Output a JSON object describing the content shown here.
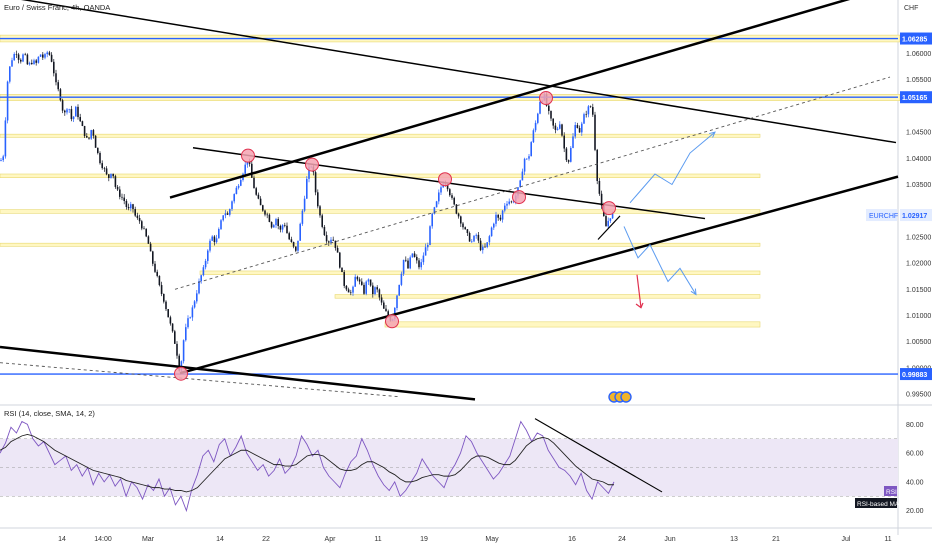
{
  "header": {
    "title": "Euro / Swiss Franc, 4h, OANDA",
    "currency": "CHF"
  },
  "colors": {
    "up": "#2962ff",
    "down": "#131722",
    "level": "#2962ff",
    "zone": "#fff7c2",
    "zone_border": "#e8d870",
    "marker_fill": "#f4a3b2",
    "marker_stroke": "#e0304e",
    "projection": "#5b9bf0",
    "arrow_red": "#e0304e",
    "rsi_line": "#7e57c2",
    "rsi_band": "#ede7f6"
  },
  "price_scale": {
    "ticks": [
      "1.06000",
      "1.05500",
      "1.04500",
      "1.04000",
      "1.03500",
      "1.02500",
      "1.02000",
      "1.01500",
      "1.01000",
      "1.00500",
      "1.00000",
      "0.99500"
    ],
    "badges": [
      {
        "name": "level-badge-high",
        "label": "1.06285",
        "value": 1.06285,
        "style": "level"
      },
      {
        "name": "level-badge-mid",
        "label": "1.05165",
        "value": 1.05165,
        "style": "level"
      },
      {
        "name": "price-badge-current",
        "label": "1.02917",
        "value": 1.02917,
        "style": "current"
      },
      {
        "name": "level-badge-low",
        "label": "0.99883",
        "value": 0.99883,
        "style": "level"
      }
    ],
    "symbol_tag": "EURCHF"
  },
  "time_axis": {
    "labels": [
      "14",
      "14:00",
      "Mar",
      "14",
      "22",
      "Apr",
      "11",
      "19",
      "May",
      "16",
      "24",
      "Jun",
      "13",
      "21",
      "Jul",
      "11"
    ]
  },
  "rsi": {
    "title": "RSI (14, close, SMA, 14, 2)",
    "ticks": [
      "80.00",
      "60.00",
      "40.00",
      "20.00"
    ],
    "tag_rsi": "RSI",
    "tag_ma": "RSI-based MA"
  },
  "chart_data": {
    "type": "candlestick",
    "title": "Euro / Swiss Franc, 4h, OANDA",
    "ylabel": "CHF",
    "ylim": [
      0.9935,
      1.0702
    ],
    "x_tick_labels": [
      "14",
      "14:00",
      "Mar",
      "14",
      "22",
      "Apr",
      "11",
      "19",
      "May",
      "16",
      "24",
      "Jun",
      "13",
      "21",
      "Jul",
      "11"
    ],
    "price_path": [
      [
        0,
        1.0395
      ],
      [
        3,
        1.04
      ],
      [
        8,
        1.056
      ],
      [
        12,
        1.059
      ],
      [
        16,
        1.0605
      ],
      [
        20,
        1.0585
      ],
      [
        24,
        1.06
      ],
      [
        28,
        1.0575
      ],
      [
        32,
        1.0585
      ],
      [
        36,
        1.058
      ],
      [
        40,
        1.06
      ],
      [
        44,
        1.059
      ],
      [
        48,
        1.0605
      ],
      [
        52,
        1.0585
      ],
      [
        56,
        1.054
      ],
      [
        60,
        1.052
      ],
      [
        64,
        1.048
      ],
      [
        68,
        1.0505
      ],
      [
        72,
        1.047
      ],
      [
        76,
        1.0495
      ],
      [
        80,
        1.047
      ],
      [
        84,
        1.045
      ],
      [
        88,
        1.043
      ],
      [
        92,
        1.046
      ],
      [
        96,
        1.042
      ],
      [
        100,
        1.0395
      ],
      [
        104,
        1.038
      ],
      [
        108,
        1.036
      ],
      [
        112,
        1.038
      ],
      [
        116,
        1.034
      ],
      [
        120,
        1.033
      ],
      [
        124,
        1.032
      ],
      [
        128,
        1.03
      ],
      [
        132,
        1.031
      ],
      [
        136,
        1.0285
      ],
      [
        140,
        1.028
      ],
      [
        144,
        1.026
      ],
      [
        148,
        1.024
      ],
      [
        152,
        1.0205
      ],
      [
        156,
        1.018
      ],
      [
        160,
        1.015
      ],
      [
        164,
        1.013
      ],
      [
        168,
        1.01
      ],
      [
        172,
        1.007
      ],
      [
        176,
        1.004
      ],
      [
        180,
        0.999
      ],
      [
        184,
        1.006
      ],
      [
        188,
        1.009
      ],
      [
        192,
        1.011
      ],
      [
        196,
        1.014
      ],
      [
        200,
        1.017
      ],
      [
        204,
        1.019
      ],
      [
        208,
        1.023
      ],
      [
        212,
        1.025
      ],
      [
        216,
        1.024
      ],
      [
        220,
        1.027
      ],
      [
        224,
        1.03
      ],
      [
        228,
        1.029
      ],
      [
        232,
        1.032
      ],
      [
        236,
        1.034
      ],
      [
        240,
        1.036
      ],
      [
        244,
        1.038
      ],
      [
        248,
        1.04
      ],
      [
        252,
        1.036
      ],
      [
        256,
        1.033
      ],
      [
        260,
        1.031
      ],
      [
        264,
        1.03
      ],
      [
        268,
        1.029
      ],
      [
        272,
        1.027
      ],
      [
        276,
        1.0285
      ],
      [
        280,
        1.026
      ],
      [
        284,
        1.028
      ],
      [
        288,
        1.025
      ],
      [
        292,
        1.0235
      ],
      [
        296,
        1.022
      ],
      [
        300,
        1.027
      ],
      [
        304,
        1.032
      ],
      [
        308,
        1.0375
      ],
      [
        312,
        1.039
      ],
      [
        316,
        1.033
      ],
      [
        320,
        1.029
      ],
      [
        324,
        1.026
      ],
      [
        328,
        1.024
      ],
      [
        332,
        1.025
      ],
      [
        336,
        1.023
      ],
      [
        340,
        1.0195
      ],
      [
        344,
        1.016
      ],
      [
        348,
        1.015
      ],
      [
        352,
        1.014
      ],
      [
        356,
        1.018
      ],
      [
        360,
        1.016
      ],
      [
        364,
        1.0145
      ],
      [
        368,
        1.0175
      ],
      [
        372,
        1.014
      ],
      [
        376,
        1.0155
      ],
      [
        380,
        1.013
      ],
      [
        384,
        1.011
      ],
      [
        388,
        1.01
      ],
      [
        392,
        1.009
      ],
      [
        396,
        1.013
      ],
      [
        400,
        1.017
      ],
      [
        404,
        1.021
      ],
      [
        408,
        1.019
      ],
      [
        412,
        1.022
      ],
      [
        416,
        1.0205
      ],
      [
        420,
        1.019
      ],
      [
        424,
        1.022
      ],
      [
        428,
        1.024
      ],
      [
        432,
        1.029
      ],
      [
        436,
        1.031
      ],
      [
        440,
        1.034
      ],
      [
        444,
        1.036
      ],
      [
        448,
        1.0345
      ],
      [
        452,
        1.032
      ],
      [
        456,
        1.03
      ],
      [
        460,
        1.0285
      ],
      [
        464,
        1.0265
      ],
      [
        468,
        1.025
      ],
      [
        472,
        1.024
      ],
      [
        476,
        1.0255
      ],
      [
        480,
        1.023
      ],
      [
        484,
        1.0225
      ],
      [
        488,
        1.024
      ],
      [
        492,
        1.027
      ],
      [
        496,
        1.029
      ],
      [
        500,
        1.028
      ],
      [
        504,
        1.031
      ],
      [
        508,
        1.032
      ],
      [
        512,
        1.0315
      ],
      [
        516,
        1.033
      ],
      [
        520,
        1.035
      ],
      [
        524,
        1.04
      ],
      [
        528,
        1.0395
      ],
      [
        532,
        1.044
      ],
      [
        536,
        1.047
      ],
      [
        540,
        1.051
      ],
      [
        544,
        1.052
      ],
      [
        548,
        1.049
      ],
      [
        552,
        1.0465
      ],
      [
        556,
        1.045
      ],
      [
        560,
        1.047
      ],
      [
        564,
        1.042
      ],
      [
        568,
        1.039
      ],
      [
        572,
        1.043
      ],
      [
        576,
        1.047
      ],
      [
        580,
        1.045
      ],
      [
        584,
        1.048
      ],
      [
        588,
        1.0495
      ],
      [
        592,
        1.05
      ],
      [
        594,
        1.046
      ],
      [
        596,
        1.038
      ],
      [
        598,
        1.035
      ],
      [
        602,
        1.03
      ],
      [
        606,
        1.027
      ],
      [
        610,
        1.029
      ],
      [
        614,
        1.0292
      ]
    ],
    "levels": [
      1.06285,
      1.05165,
      0.99883
    ],
    "current_price": 1.02917,
    "zones": [
      {
        "x0": 0,
        "x1": 900,
        "y0": 1.0622,
        "y1": 1.0635
      },
      {
        "x0": 0,
        "x1": 900,
        "y0": 1.051,
        "y1": 1.0522
      },
      {
        "x0": 0,
        "x1": 760,
        "y0": 1.044,
        "y1": 1.0446
      },
      {
        "x0": 0,
        "x1": 760,
        "y0": 1.0363,
        "y1": 1.037
      },
      {
        "x0": 0,
        "x1": 760,
        "y0": 1.0295,
        "y1": 1.0302
      },
      {
        "x0": 0,
        "x1": 760,
        "y0": 1.0232,
        "y1": 1.0238
      },
      {
        "x0": 200,
        "x1": 760,
        "y0": 1.0178,
        "y1": 1.0185
      },
      {
        "x0": 335,
        "x1": 760,
        "y0": 1.0133,
        "y1": 1.014
      },
      {
        "x0": 385,
        "x1": 760,
        "y0": 1.0078,
        "y1": 1.0088
      }
    ],
    "trendlines": [
      {
        "p1": [
          0,
          1.071
        ],
        "p2": [
          896,
          1.043
        ],
        "w": 1.5,
        "dash": false
      },
      {
        "p1": [
          170,
          1.0325
        ],
        "p2": [
          860,
          1.071
        ],
        "w": 2.5,
        "dash": false
      },
      {
        "p1": [
          0,
          1.004
        ],
        "p2": [
          475,
          0.994
        ],
        "w": 2.5,
        "dash": false
      },
      {
        "p1": [
          180,
          0.999
        ],
        "p2": [
          898,
          1.0365
        ],
        "w": 2.5,
        "dash": false
      },
      {
        "p1": [
          193,
          1.042
        ],
        "p2": [
          705,
          1.0285
        ],
        "w": 1.5,
        "dash": false
      },
      {
        "p1": [
          175,
          1.015
        ],
        "p2": [
          890,
          1.0555
        ],
        "w": 0.9,
        "dash": true
      },
      {
        "p1": [
          0,
          1.001
        ],
        "p2": [
          400,
          0.9945
        ],
        "w": 0.9,
        "dash": true
      },
      {
        "p1": [
          598,
          1.0245
        ],
        "p2": [
          620,
          1.029
        ],
        "w": 1.2,
        "dash": false
      }
    ],
    "markers": [
      [
        248,
        1.0405
      ],
      [
        312,
        1.0388
      ],
      [
        445,
        1.036
      ],
      [
        519,
        1.0326
      ],
      [
        546,
        1.0515
      ],
      [
        609,
        1.0305
      ],
      [
        392,
        1.0089
      ],
      [
        181,
        0.9989
      ]
    ],
    "projection_up": [
      [
        630,
        1.0315
      ],
      [
        655,
        1.037
      ],
      [
        672,
        1.035
      ],
      [
        690,
        1.041
      ],
      [
        715,
        1.045
      ]
    ],
    "projection_down": [
      [
        624,
        1.027
      ],
      [
        638,
        1.021
      ],
      [
        650,
        1.0235
      ],
      [
        668,
        1.0165
      ],
      [
        680,
        1.019
      ],
      [
        696,
        1.014
      ]
    ],
    "rsi_ylim": [
      10,
      90
    ],
    "rsi_bands": [
      30,
      70
    ],
    "rsi_levels": [
      50
    ],
    "rsi_values": [
      60,
      67,
      78,
      74,
      82,
      80,
      70,
      65,
      68,
      60,
      52,
      55,
      58,
      48,
      52,
      44,
      50,
      38,
      46,
      40,
      45,
      37,
      42,
      30,
      40,
      36,
      28,
      38,
      34,
      42,
      30,
      36,
      24,
      30,
      20,
      35,
      45,
      58,
      62,
      54,
      66,
      70,
      58,
      64,
      72,
      60,
      54,
      48,
      52,
      44,
      48,
      56,
      46,
      50,
      58,
      72,
      66,
      58,
      62,
      50,
      44,
      40,
      36,
      46,
      54,
      58,
      70,
      62,
      52,
      44,
      38,
      34,
      40,
      30,
      34,
      40,
      46,
      56,
      50,
      44,
      40,
      36,
      46,
      52,
      60,
      72,
      68,
      60,
      54,
      48,
      42,
      46,
      52,
      58,
      70,
      82,
      76,
      68,
      74,
      72,
      62,
      56,
      50,
      48,
      44,
      38,
      46,
      34,
      28,
      40,
      36,
      32,
      40
    ],
    "rsi_ma_values": [
      62,
      64,
      68,
      70,
      72,
      73,
      72,
      70,
      68,
      65,
      62,
      60,
      58,
      56,
      54,
      52,
      50,
      48,
      47,
      46,
      45,
      44,
      43,
      41,
      40,
      39,
      38,
      37,
      36,
      36,
      35,
      35,
      34,
      34,
      33,
      34,
      36,
      40,
      44,
      48,
      52,
      56,
      58,
      60,
      62,
      62,
      60,
      58,
      56,
      54,
      52,
      52,
      51,
      51,
      52,
      55,
      58,
      59,
      59,
      58,
      55,
      52,
      49,
      48,
      48,
      49,
      52,
      54,
      54,
      52,
      50,
      47,
      45,
      42,
      40,
      40,
      41,
      43,
      44,
      45,
      45,
      44,
      44,
      45,
      48,
      52,
      56,
      58,
      58,
      57,
      55,
      53,
      52,
      52,
      55,
      60,
      65,
      68,
      70,
      71,
      70,
      67,
      63,
      59,
      55,
      51,
      48,
      45,
      42,
      41,
      40,
      38,
      38
    ],
    "rsi_trendline": {
      "p1": [
        535,
        84
      ],
      "p2": [
        662,
        33
      ]
    }
  }
}
